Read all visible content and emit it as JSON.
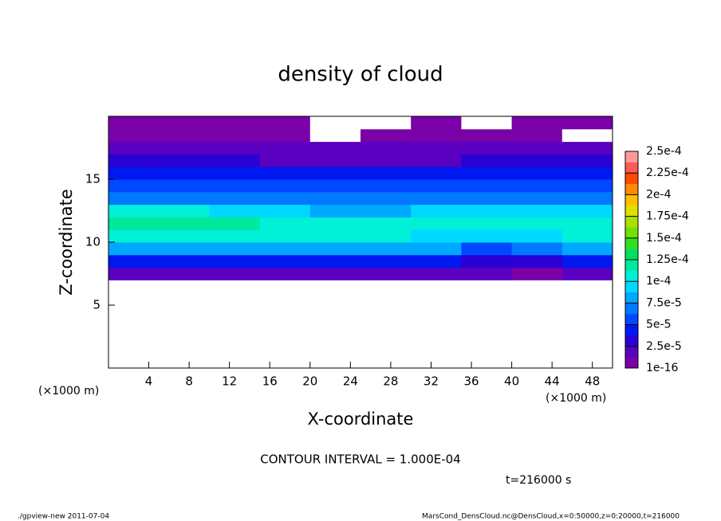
{
  "chart_data": {
    "type": "heatmap",
    "title": "density of cloud",
    "xlabel": "X-coordinate",
    "ylabel": "Z-coordinate",
    "xunit": "(×1000 m)",
    "yunit": "(×1000 m)",
    "note": "CONTOUR INTERVAL = 1.000E-04",
    "time": "t=216000 s",
    "footer_left": "./gpview-new  2011-07-04",
    "footer_right": "MarsCond_DensCloud.nc@DensCloud,x=0:50000,z=0:20000,t=216000",
    "xlim": [
      0,
      50
    ],
    "xticks": [
      4,
      8,
      12,
      16,
      20,
      24,
      28,
      32,
      36,
      40,
      44,
      48
    ],
    "ylim": [
      0,
      20
    ],
    "yticks": [
      5,
      10,
      15
    ],
    "x": [
      2.5,
      7.5,
      12.5,
      17.5,
      22.5,
      27.5,
      32.5,
      37.5,
      42.5,
      47.5
    ],
    "y": [
      0.5,
      1.5,
      2.5,
      3.5,
      4.5,
      5.5,
      6.5,
      7.5,
      8.5,
      9.5,
      10.5,
      11.5,
      12.5,
      13.5,
      14.5,
      15.5,
      16.5,
      17.5,
      18.5,
      19.5
    ],
    "z": [
      [
        0,
        0,
        0,
        0,
        0,
        0,
        0,
        0,
        0,
        0
      ],
      [
        0,
        0,
        0,
        0,
        0,
        0,
        0,
        0,
        0,
        0
      ],
      [
        0,
        0,
        0,
        0,
        0,
        0,
        0,
        0,
        0,
        0
      ],
      [
        0,
        0,
        0,
        0,
        0,
        0,
        0,
        0,
        0,
        0
      ],
      [
        0,
        0,
        0,
        0,
        0,
        0,
        0,
        0,
        0,
        0
      ],
      [
        0,
        0,
        0,
        0,
        0,
        0,
        0,
        0,
        0,
        0
      ],
      [
        0,
        0,
        0,
        0,
        0,
        0,
        0,
        0,
        0,
        0
      ],
      [
        2e-05,
        2e-05,
        2e-05,
        2e-05,
        2e-05,
        2e-05,
        2e-05,
        1.5e-05,
        1e-05,
        2e-05
      ],
      [
        4.5e-05,
        4.5e-05,
        4.5e-05,
        4.5e-05,
        4.5e-05,
        4.5e-05,
        4.5e-05,
        3.5e-05,
        3e-05,
        4.5e-05
      ],
      [
        8.5e-05,
        8.5e-05,
        8e-05,
        8e-05,
        8e-05,
        8e-05,
        8e-05,
        6e-05,
        6.5e-05,
        8.5e-05
      ],
      [
        0.00011,
        0.00011,
        0.000105,
        0.000105,
        0.000105,
        0.000105,
        0.0001,
        9e-05,
        0.0001,
        0.000105
      ],
      [
        0.00012,
        0.000125,
        0.000115,
        0.00011,
        0.00011,
        0.00011,
        0.000105,
        0.000105,
        0.000105,
        0.00011
      ],
      [
        0.000105,
        0.00011,
        0.0001,
        9e-05,
        8.5e-05,
        8.5e-05,
        9e-05,
        0.0001,
        9e-05,
        9.5e-05
      ],
      [
        7.5e-05,
        7.5e-05,
        7.5e-05,
        7e-05,
        7e-05,
        7e-05,
        7e-05,
        7.5e-05,
        7e-05,
        7e-05
      ],
      [
        6e-05,
        6e-05,
        6e-05,
        5.5e-05,
        5.5e-05,
        5.5e-05,
        5.5e-05,
        6e-05,
        5.5e-05,
        5.5e-05
      ],
      [
        4.5e-05,
        4.5e-05,
        4.5e-05,
        4e-05,
        4e-05,
        4e-05,
        4e-05,
        4.5e-05,
        4e-05,
        4e-05
      ],
      [
        3e-05,
        3e-05,
        3e-05,
        2.5e-05,
        2.5e-05,
        2.5e-05,
        2.5e-05,
        3e-05,
        3e-05,
        3e-05
      ],
      [
        2e-05,
        2e-05,
        2e-05,
        1.5e-05,
        1.5e-05,
        1.5e-05,
        1.5e-05,
        2e-05,
        2e-05,
        2e-05
      ],
      [
        1e-05,
        1e-05,
        1e-05,
        1e-05,
        0,
        1e-05,
        1e-05,
        1e-05,
        1e-05,
        0
      ],
      [
        8e-06,
        8e-06,
        8e-06,
        8e-06,
        0,
        0,
        1e-05,
        0,
        8e-06,
        8e-06
      ]
    ],
    "clim": [
      1e-16,
      0.00025
    ],
    "colors": [
      "#7a00a8",
      "#5a00c0",
      "#2a00d4",
      "#0018f0",
      "#0048ff",
      "#0078ff",
      "#00a8ff",
      "#00d8ff",
      "#00f0d8",
      "#00e89a",
      "#00e060",
      "#30e020",
      "#70e000",
      "#a8e000",
      "#e0e000",
      "#ffc000",
      "#ff8c00",
      "#ff4a00",
      "#ff5a5a",
      "#ff9a9a"
    ],
    "cticks": [
      {
        "value": 1e-16,
        "label": "1e-16"
      },
      {
        "value": 2.5e-05,
        "label": "2.5e-5"
      },
      {
        "value": 5e-05,
        "label": "5e-5"
      },
      {
        "value": 7.5e-05,
        "label": "7.5e-5"
      },
      {
        "value": 0.0001,
        "label": "1e-4"
      },
      {
        "value": 0.000125,
        "label": "1.25e-4"
      },
      {
        "value": 0.00015,
        "label": "1.5e-4"
      },
      {
        "value": 0.000175,
        "label": "1.75e-4"
      },
      {
        "value": 0.0002,
        "label": "2e-4"
      },
      {
        "value": 0.000225,
        "label": "2.25e-4"
      },
      {
        "value": 0.00025,
        "label": "2.5e-4"
      }
    ]
  }
}
